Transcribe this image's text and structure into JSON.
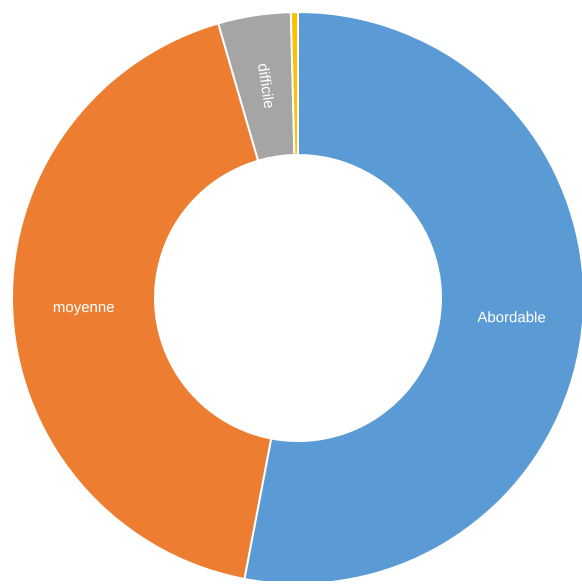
{
  "chart_data": {
    "type": "pie",
    "donut": true,
    "slices": [
      {
        "label": "Abordable",
        "value": 53,
        "color": "#5b9bd5"
      },
      {
        "label": "moyenne",
        "value": 42.5,
        "color": "#ed7d31"
      },
      {
        "label": "difficile",
        "value": 4.1,
        "color": "#a5a5a5"
      },
      {
        "label": "",
        "value": 0.4,
        "color": "#ffc000"
      }
    ]
  }
}
